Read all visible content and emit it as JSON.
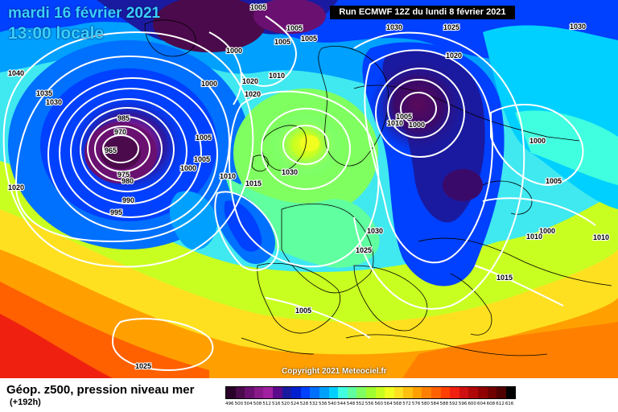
{
  "header": {
    "date": "mardi 16 février 2021",
    "time": "13:00 locale",
    "run": "Run ECMWF 12Z du lundi 8 février 2021"
  },
  "footer": {
    "title": "Géop. z500, pression niveau mer",
    "lead": "(+192h)",
    "copyright": "Copyright 2021 Meteociel.fr"
  },
  "legend": {
    "ticks": [
      "496",
      "500",
      "504",
      "508",
      "512",
      "516",
      "520",
      "524",
      "528",
      "532",
      "536",
      "540",
      "544",
      "548",
      "552",
      "556",
      "560",
      "564",
      "568",
      "572",
      "576",
      "580",
      "584",
      "588",
      "592",
      "596",
      "600",
      "604",
      "608",
      "612",
      "616"
    ],
    "colors": [
      "#2a0028",
      "#4b0a4b",
      "#6a1070",
      "#8a1a8a",
      "#a020a0",
      "#5a0a8a",
      "#1a1aa0",
      "#0020d0",
      "#0040ff",
      "#0070ff",
      "#00a0ff",
      "#00d0ff",
      "#40ffe0",
      "#60ffa0",
      "#80ff60",
      "#a0ff30",
      "#c8ff20",
      "#f0ff20",
      "#ffe020",
      "#ffc010",
      "#ffa000",
      "#ff8000",
      "#ff6000",
      "#ff4000",
      "#f02010",
      "#d01010",
      "#b00808",
      "#900000",
      "#700000",
      "#500000",
      "#000000"
    ]
  },
  "pressure_labels": [
    {
      "text": "1005",
      "id": "p1"
    },
    {
      "text": "1005",
      "id": "p2"
    },
    {
      "text": "1005",
      "id": "p3"
    },
    {
      "text": "1005",
      "id": "p4"
    },
    {
      "text": "1000",
      "id": "p5"
    },
    {
      "text": "1000",
      "id": "p6"
    },
    {
      "text": "1010",
      "id": "p7"
    },
    {
      "text": "1020",
      "id": "p8"
    },
    {
      "text": "1020",
      "id": "p9"
    },
    {
      "text": "1040",
      "id": "p10"
    },
    {
      "text": "1035",
      "id": "p11"
    },
    {
      "text": "1030",
      "id": "p12"
    },
    {
      "text": "1020",
      "id": "p13"
    },
    {
      "text": "985",
      "id": "p14"
    },
    {
      "text": "970",
      "id": "p15"
    },
    {
      "text": "965",
      "id": "p16"
    },
    {
      "text": "975",
      "id": "p17"
    },
    {
      "text": "980",
      "id": "p18"
    },
    {
      "text": "990",
      "id": "p19"
    },
    {
      "text": "995",
      "id": "p20"
    },
    {
      "text": "1000",
      "id": "p21"
    },
    {
      "text": "1005",
      "id": "p22"
    },
    {
      "text": "1005",
      "id": "p23"
    },
    {
      "text": "1010",
      "id": "p24"
    },
    {
      "text": "1015",
      "id": "p25"
    },
    {
      "text": "1030",
      "id": "p26"
    },
    {
      "text": "1030",
      "id": "p27"
    },
    {
      "text": "1025",
      "id": "p28"
    },
    {
      "text": "1005",
      "id": "p29"
    },
    {
      "text": "1025",
      "id": "p30"
    },
    {
      "text": "1030",
      "id": "p31"
    },
    {
      "text": "1025",
      "id": "p32"
    },
    {
      "text": "1020",
      "id": "p33"
    },
    {
      "text": "1005",
      "id": "p34"
    },
    {
      "text": "1010",
      "id": "p35"
    },
    {
      "text": "1000",
      "id": "p36"
    },
    {
      "text": "1000",
      "id": "p37"
    },
    {
      "text": "1005",
      "id": "p38"
    },
    {
      "text": "1000",
      "id": "p39"
    },
    {
      "text": "1010",
      "id": "p40"
    },
    {
      "text": "1010",
      "id": "p41"
    },
    {
      "text": "1015",
      "id": "p42"
    },
    {
      "text": "1030",
      "id": "p43"
    }
  ]
}
